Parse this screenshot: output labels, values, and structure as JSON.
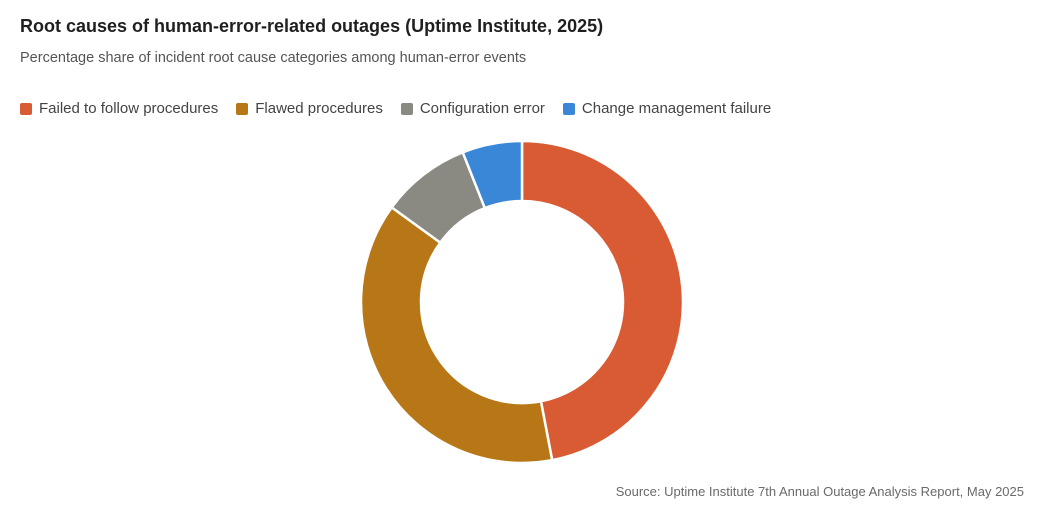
{
  "header": {
    "title": "Root causes of human-error-related outages (Uptime Institute, 2025)",
    "subtitle": "Percentage share of incident root cause categories among human-error events"
  },
  "chart_data": {
    "type": "pie",
    "variant": "donut",
    "title": "Root causes of human-error-related outages (Uptime Institute, 2025)",
    "subtitle": "Percentage share of incident root cause categories among human-error events",
    "legend_position": "top-left",
    "categories": [
      "Failed to follow procedures",
      "Flawed procedures",
      "Configuration error",
      "Change management failure"
    ],
    "values": [
      47,
      38,
      9,
      6
    ],
    "colors": [
      "#d95b33",
      "#b87717",
      "#8a8a82",
      "#3a87d8"
    ]
  },
  "footer": {
    "source": "Source: Uptime Institute 7th Annual Outage Analysis Report, May 2025"
  }
}
